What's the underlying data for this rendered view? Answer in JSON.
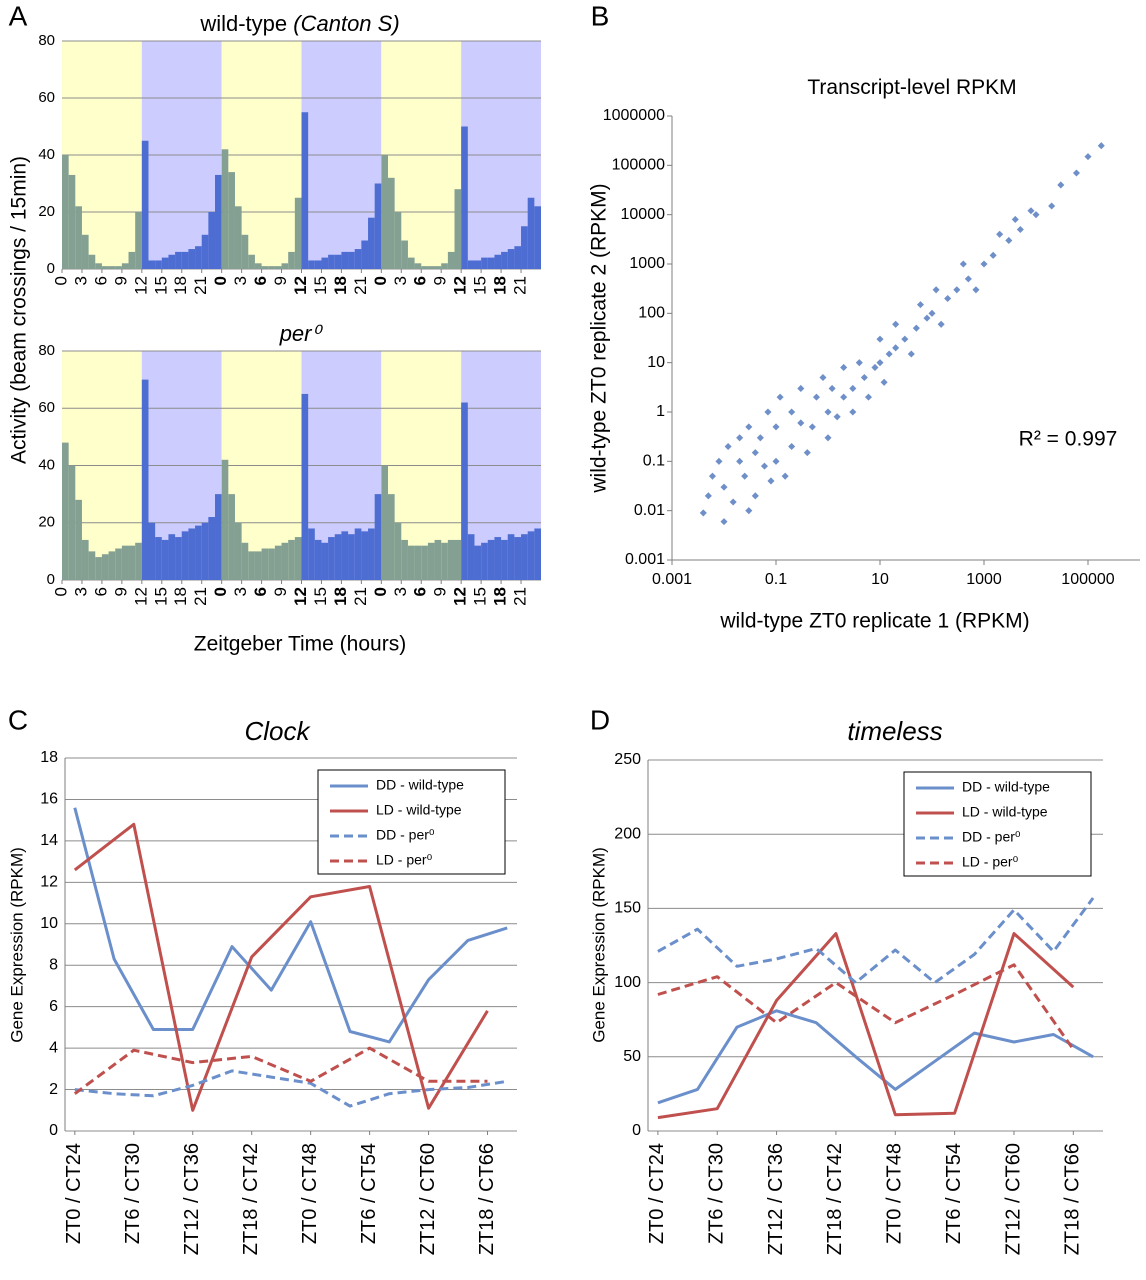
{
  "chart_data": [
    {
      "type": "histogram",
      "panel": "A",
      "title": "wild-type",
      "title_italic": "(Canton S)",
      "ylabel": "Activity (beam crossings / 15min)",
      "bins": [
        0,
        1,
        2,
        3,
        4,
        5,
        6,
        7,
        8,
        9,
        10,
        11,
        12,
        13,
        14,
        15,
        16,
        17,
        18,
        19,
        20,
        21,
        22,
        23,
        24,
        25,
        26,
        27,
        28,
        29,
        30,
        31,
        32,
        33,
        34,
        35,
        36,
        37,
        38,
        39,
        40,
        41,
        42,
        43,
        44,
        45,
        46,
        47,
        48,
        49,
        50,
        51,
        52,
        53,
        54,
        55,
        56,
        57,
        58,
        59,
        60,
        61,
        62,
        63,
        64,
        65,
        66,
        67,
        68,
        69,
        70,
        71,
        72
      ],
      "values": [
        40,
        33,
        22,
        12,
        5,
        2,
        1,
        1,
        1,
        2,
        6,
        20,
        45,
        3,
        3,
        4,
        5,
        6,
        6,
        7,
        8,
        12,
        20,
        33,
        42,
        34,
        22,
        12,
        5,
        2,
        1,
        1,
        1,
        2,
        6,
        25,
        55,
        3,
        3,
        4,
        5,
        5,
        6,
        6,
        7,
        10,
        18,
        30,
        40,
        32,
        20,
        10,
        4,
        2,
        1,
        1,
        1,
        2,
        6,
        28,
        50,
        3,
        3,
        4,
        4,
        5,
        6,
        7,
        8,
        15,
        25,
        22
      ],
      "xlim": [
        0,
        72
      ],
      "xticks": [
        0,
        3,
        6,
        9,
        12,
        15,
        18,
        21,
        {
          "value": 24,
          "label": "0"
        },
        {
          "value": 27,
          "label": "3"
        },
        {
          "value": 30,
          "label": "6"
        },
        {
          "value": 33,
          "label": "9"
        },
        {
          "value": 36,
          "label": "12"
        },
        {
          "value": 39,
          "label": "15"
        },
        {
          "value": 42,
          "label": "18"
        },
        {
          "value": 45,
          "label": "21"
        },
        {
          "value": 48,
          "label": "0"
        },
        {
          "value": 51,
          "label": "3"
        },
        {
          "value": 54,
          "label": "6"
        },
        {
          "value": 57,
          "label": "9"
        },
        {
          "value": 60,
          "label": "12"
        },
        {
          "value": 63,
          "label": "15"
        },
        {
          "value": 66,
          "label": "18"
        },
        {
          "value": 69,
          "label": "21"
        }
      ],
      "xtick_colors": [
        "#000000",
        "#000000",
        "#000000",
        "#000000",
        "#000000",
        "#000000",
        "#000000",
        "#000000",
        "#dd0000",
        "#000000",
        "#dd0000",
        "#000000",
        "#dd0000",
        "#000000",
        "#dd0000",
        "#000000",
        "#dd0000",
        "#000000",
        "#dd0000",
        "#000000",
        "#dd0000",
        "#000000",
        "#dd0000",
        "#000000"
      ],
      "ylim": [
        0,
        80
      ],
      "yticks": [
        0,
        20,
        40,
        60,
        80
      ],
      "grid": true,
      "shading": [
        {
          "start": 0,
          "end": 12,
          "color": "#ffffcc",
          "bar_color": "#83a093"
        },
        {
          "start": 12,
          "end": 24,
          "color": "#ccccff",
          "bar_color": "#4d6dd2"
        },
        {
          "start": 24,
          "end": 36,
          "color": "#ffffcc",
          "bar_color": "#83a093"
        },
        {
          "start": 36,
          "end": 48,
          "color": "#ccccff",
          "bar_color": "#4d6dd2"
        },
        {
          "start": 48,
          "end": 60,
          "color": "#ffffcc",
          "bar_color": "#83a093"
        },
        {
          "start": 60,
          "end": 72,
          "color": "#ccccff",
          "bar_color": "#4d6dd2"
        }
      ]
    },
    {
      "type": "histogram",
      "title": "per⁰",
      "title_style": "italic",
      "xlabel": "Zeitgeber Time (hours)",
      "bins": [
        0,
        1,
        2,
        3,
        4,
        5,
        6,
        7,
        8,
        9,
        10,
        11,
        12,
        13,
        14,
        15,
        16,
        17,
        18,
        19,
        20,
        21,
        22,
        23,
        24,
        25,
        26,
        27,
        28,
        29,
        30,
        31,
        32,
        33,
        34,
        35,
        36,
        37,
        38,
        39,
        40,
        41,
        42,
        43,
        44,
        45,
        46,
        47,
        48,
        49,
        50,
        51,
        52,
        53,
        54,
        55,
        56,
        57,
        58,
        59,
        60,
        61,
        62,
        63,
        64,
        65,
        66,
        67,
        68,
        69,
        70,
        71,
        72
      ],
      "values": [
        48,
        40,
        28,
        14,
        10,
        8,
        9,
        10,
        11,
        12,
        12,
        13,
        70,
        20,
        15,
        14,
        16,
        15,
        17,
        18,
        19,
        20,
        22,
        30,
        42,
        30,
        20,
        13,
        10,
        10,
        11,
        11,
        12,
        13,
        14,
        15,
        65,
        18,
        14,
        13,
        15,
        16,
        17,
        16,
        18,
        17,
        18,
        30,
        40,
        30,
        20,
        14,
        12,
        12,
        12,
        13,
        14,
        13,
        14,
        14,
        62,
        16,
        12,
        13,
        14,
        15,
        14,
        16,
        15,
        16,
        17,
        18
      ],
      "xlim": [
        0,
        72
      ],
      "xticks": [
        0,
        3,
        6,
        9,
        12,
        15,
        18,
        21,
        {
          "value": 24,
          "label": "0"
        },
        {
          "value": 27,
          "label": "3"
        },
        {
          "value": 30,
          "label": "6"
        },
        {
          "value": 33,
          "label": "9"
        },
        {
          "value": 36,
          "label": "12"
        },
        {
          "value": 39,
          "label": "15"
        },
        {
          "value": 42,
          "label": "18"
        },
        {
          "value": 45,
          "label": "21"
        },
        {
          "value": 48,
          "label": "0"
        },
        {
          "value": 51,
          "label": "3"
        },
        {
          "value": 54,
          "label": "6"
        },
        {
          "value": 57,
          "label": "9"
        },
        {
          "value": 60,
          "label": "12"
        },
        {
          "value": 63,
          "label": "15"
        },
        {
          "value": 66,
          "label": "18"
        },
        {
          "value": 69,
          "label": "21"
        }
      ],
      "xtick_colors": [
        "#000000",
        "#000000",
        "#000000",
        "#000000",
        "#000000",
        "#000000",
        "#000000",
        "#000000",
        "#dd0000",
        "#000000",
        "#dd0000",
        "#000000",
        "#dd0000",
        "#000000",
        "#dd0000",
        "#000000",
        "#dd0000",
        "#000000",
        "#dd0000",
        "#000000",
        "#dd0000",
        "#000000",
        "#dd0000",
        "#000000"
      ],
      "ylim": [
        0,
        80
      ],
      "yticks": [
        0,
        20,
        40,
        60,
        80
      ],
      "grid": true,
      "shading": [
        {
          "start": 0,
          "end": 12,
          "color": "#ffffcc",
          "bar_color": "#83a093"
        },
        {
          "start": 12,
          "end": 24,
          "color": "#ccccff",
          "bar_color": "#4d6dd2"
        },
        {
          "start": 24,
          "end": 36,
          "color": "#ffffcc",
          "bar_color": "#83a093"
        },
        {
          "start": 36,
          "end": 48,
          "color": "#ccccff",
          "bar_color": "#4d6dd2"
        },
        {
          "start": 48,
          "end": 60,
          "color": "#ffffcc",
          "bar_color": "#83a093"
        },
        {
          "start": 60,
          "end": 72,
          "color": "#ccccff",
          "bar_color": "#4d6dd2"
        }
      ]
    },
    {
      "type": "scatter",
      "panel": "B",
      "title": "Transcript-level RPKM",
      "xlabel": "wild-type ZT0 replicate 1 (RPKM)",
      "ylabel": "wild-type ZT0 replicate 2 (RPKM)",
      "annotation": "R² = 0.997",
      "color": "#6f8fc9",
      "log_x": true,
      "log_y": true,
      "grid": false,
      "x": [
        0.004,
        0.005,
        0.006,
        0.008,
        0.01,
        0.01,
        0.012,
        0.015,
        0.02,
        0.02,
        0.025,
        0.03,
        0.03,
        0.04,
        0.04,
        0.05,
        0.06,
        0.07,
        0.08,
        0.1,
        0.1,
        0.12,
        0.15,
        0.2,
        0.2,
        0.3,
        0.3,
        0.4,
        0.5,
        0.6,
        0.8,
        1,
        1,
        1.2,
        1.5,
        2,
        2,
        3,
        3,
        4,
        5,
        6,
        8,
        10,
        10,
        12,
        15,
        20,
        20,
        30,
        40,
        50,
        60,
        80,
        100,
        120,
        150,
        200,
        300,
        400,
        500,
        700,
        1000,
        1500,
        2000,
        3000,
        4000,
        5000,
        8000,
        10000,
        20000,
        30000,
        60000,
        100000,
        180000
      ],
      "values": [
        0.009,
        0.02,
        0.05,
        0.1,
        0.006,
        0.03,
        0.2,
        0.015,
        0.1,
        0.3,
        0.05,
        0.01,
        0.5,
        0.02,
        0.15,
        0.3,
        0.08,
        1,
        0.04,
        0.1,
        0.5,
        2,
        0.05,
        0.2,
        1,
        0.6,
        3,
        0.15,
        0.5,
        2,
        5,
        1,
        0.3,
        3,
        0.8,
        2,
        8,
        3,
        1,
        10,
        5,
        2,
        8,
        10,
        30,
        4,
        15,
        20,
        60,
        30,
        15,
        50,
        150,
        80,
        100,
        300,
        60,
        200,
        300,
        1000,
        500,
        300,
        1000,
        1500,
        4000,
        3000,
        8000,
        5000,
        12000,
        10000,
        15000,
        40000,
        70000,
        150000,
        250000
      ],
      "xlim": [
        0.001,
        1000000
      ],
      "xticks": [
        0.001,
        0.1,
        10,
        1000,
        100000
      ],
      "ylim": [
        0.001,
        1000000
      ],
      "yticks": [
        0.001,
        0.01,
        0.1,
        1,
        10,
        100,
        1000,
        10000,
        100000,
        1000000
      ]
    },
    {
      "type": "line",
      "panel": "C",
      "title": "Clock",
      "title_style": "italic",
      "ylabel": "Gene Expression (RPKM)",
      "legend": "top-right",
      "grid": true,
      "series": [
        {
          "name": "DD - wild-type",
          "color": "#6a8fcb",
          "line_style": "solid",
          "x": [
            0,
            4,
            8,
            12,
            16,
            20,
            24,
            28,
            32,
            36,
            40,
            44
          ],
          "values": [
            15.6,
            8.3,
            4.9,
            4.9,
            8.9,
            6.8,
            10.1,
            4.8,
            4.3,
            7.3,
            9.2,
            9.8
          ]
        },
        {
          "name": "LD - wild-type",
          "color": "#c0504d",
          "line_style": "solid",
          "x": [
            0,
            6,
            12,
            18,
            24,
            30,
            36,
            42
          ],
          "values": [
            12.6,
            14.8,
            1.0,
            8.4,
            11.3,
            11.8,
            1.1,
            5.8
          ]
        },
        {
          "name": "DD - per⁰",
          "color": "#6a8fcb",
          "line_style": "dashed",
          "x": [
            0,
            4,
            8,
            12,
            16,
            20,
            24,
            28,
            32,
            36,
            40,
            44
          ],
          "values": [
            2.0,
            1.8,
            1.7,
            2.2,
            2.9,
            2.6,
            2.3,
            1.2,
            1.8,
            2.0,
            2.1,
            2.4
          ]
        },
        {
          "name": "LD - per⁰",
          "color": "#c0504d",
          "line_style": "dashed",
          "x": [
            0,
            6,
            12,
            18,
            24,
            30,
            36,
            42
          ],
          "values": [
            1.8,
            3.9,
            3.3,
            3.6,
            2.4,
            4.0,
            2.4,
            2.4
          ]
        }
      ],
      "xlim": [
        -1,
        45
      ],
      "xticks": [
        {
          "value": 0,
          "label": "ZT0 / CT24"
        },
        {
          "value": 6,
          "label": "ZT6 / CT30"
        },
        {
          "value": 12,
          "label": "ZT12 / CT36"
        },
        {
          "value": 18,
          "label": "ZT18 / CT42"
        },
        {
          "value": 24,
          "label": "ZT0 / CT48"
        },
        {
          "value": 30,
          "label": "ZT6 / CT54"
        },
        {
          "value": 36,
          "label": "ZT12 / CT60"
        },
        {
          "value": 42,
          "label": "ZT18 / CT66"
        }
      ],
      "ylim": [
        0,
        18
      ],
      "yticks": [
        0,
        2,
        4,
        6,
        8,
        10,
        12,
        14,
        16,
        18
      ]
    },
    {
      "type": "line",
      "panel": "D",
      "title": "timeless",
      "title_style": "italic",
      "ylabel": "Gene Expression (RPKM)",
      "legend": "top-right",
      "grid": true,
      "series": [
        {
          "name": "DD - wild-type",
          "color": "#6a8fcb",
          "line_style": "solid",
          "x": [
            0,
            4,
            8,
            12,
            16,
            20,
            24,
            28,
            32,
            36,
            40,
            44
          ],
          "values": [
            19,
            28,
            70,
            81,
            73,
            50,
            28,
            47,
            66,
            60,
            65,
            50
          ]
        },
        {
          "name": "LD - wild-type",
          "color": "#c0504d",
          "line_style": "solid",
          "x": [
            0,
            6,
            12,
            18,
            24,
            30,
            36,
            42
          ],
          "values": [
            9,
            15,
            88,
            133,
            11,
            12,
            133,
            97
          ]
        },
        {
          "name": "DD - per⁰",
          "color": "#6a8fcb",
          "line_style": "dashed",
          "x": [
            0,
            4,
            8,
            12,
            16,
            20,
            24,
            28,
            32,
            36,
            40,
            44
          ],
          "values": [
            121,
            136,
            111,
            116,
            123,
            100,
            122,
            100,
            119,
            149,
            121,
            157
          ]
        },
        {
          "name": "LD - per⁰",
          "color": "#c0504d",
          "line_style": "dashed",
          "x": [
            0,
            6,
            12,
            18,
            24,
            30,
            36,
            42
          ],
          "values": [
            92,
            104,
            73,
            100,
            73,
            92,
            112,
            55
          ]
        }
      ],
      "xlim": [
        -1,
        45
      ],
      "xticks": [
        {
          "value": 0,
          "label": "ZT0 / CT24"
        },
        {
          "value": 6,
          "label": "ZT6 / CT30"
        },
        {
          "value": 12,
          "label": "ZT12 / CT36"
        },
        {
          "value": 18,
          "label": "ZT18 / CT42"
        },
        {
          "value": 24,
          "label": "ZT0 / CT48"
        },
        {
          "value": 30,
          "label": "ZT6 / CT54"
        },
        {
          "value": 36,
          "label": "ZT12 / CT60"
        },
        {
          "value": 42,
          "label": "ZT18 / CT66"
        }
      ],
      "ylim": [
        0,
        250
      ],
      "yticks": [
        0,
        50,
        100,
        150,
        200,
        250
      ]
    }
  ]
}
